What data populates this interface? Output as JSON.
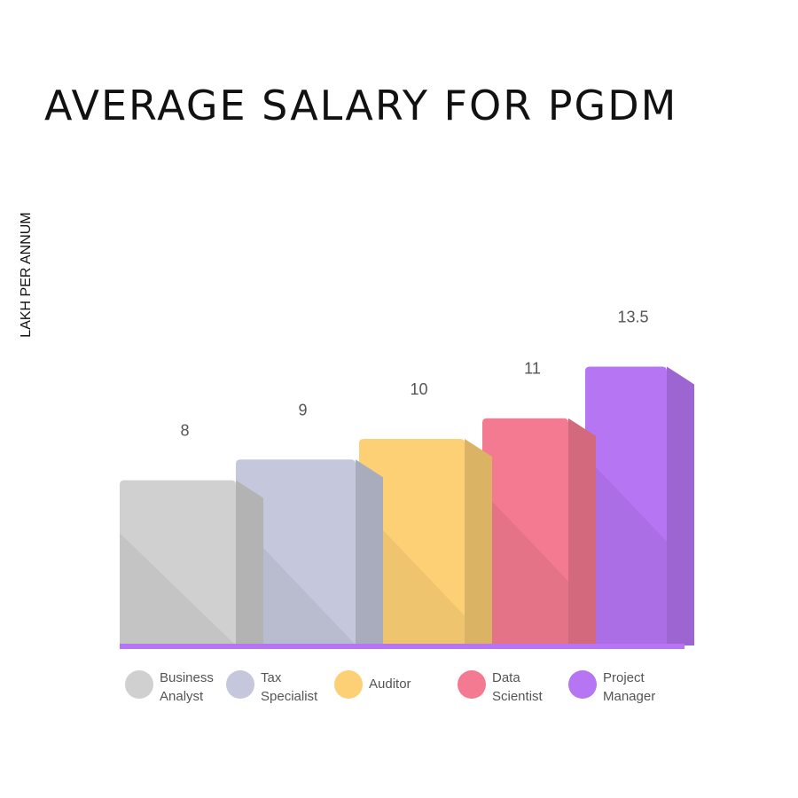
{
  "chart_data": {
    "type": "bar",
    "title": "AVERAGE SALARY FOR PGDM",
    "ylabel": "LAKH PER ANNUM",
    "xlabel": "",
    "categories": [
      "Business Analyst",
      "Tax Specialist",
      "Auditor",
      "Data Scientist",
      "Project Manager"
    ],
    "legend": [
      [
        "Business",
        "Analyst"
      ],
      [
        "Tax",
        "Specialist"
      ],
      [
        "Auditor"
      ],
      [
        "Data",
        "Scientist"
      ],
      [
        "Project",
        "Manager"
      ]
    ],
    "values": [
      8,
      9,
      10,
      11,
      13.5
    ],
    "value_labels": [
      "8",
      "9",
      "10",
      "11",
      "13.5"
    ],
    "colors": [
      "#d0d0d0",
      "#c5c8dc",
      "#fdd076",
      "#f47a91",
      "#b675f3"
    ],
    "baseline_color": "#b675f3",
    "legend_placement": "bottom",
    "grid": false
  }
}
